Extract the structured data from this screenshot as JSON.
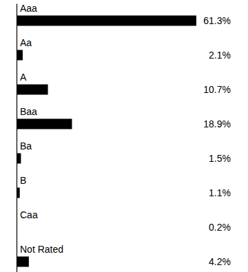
{
  "chart_data": {
    "type": "bar",
    "orientation": "horizontal",
    "categories": [
      "Aaa",
      "Aa",
      "A",
      "Baa",
      "Ba",
      "B",
      "Caa",
      "Not Rated"
    ],
    "values": [
      61.3,
      2.1,
      10.7,
      18.9,
      1.5,
      1.1,
      0.2,
      4.2
    ],
    "value_labels": [
      "61.3%",
      "2.1%",
      "10.7%",
      "18.9%",
      "1.5%",
      "1.1%",
      "0.2%",
      "4.2%"
    ],
    "color": "#000000",
    "xlim": [
      0,
      61.3
    ],
    "grid": false,
    "data_labels": true,
    "tick_labels": false
  }
}
